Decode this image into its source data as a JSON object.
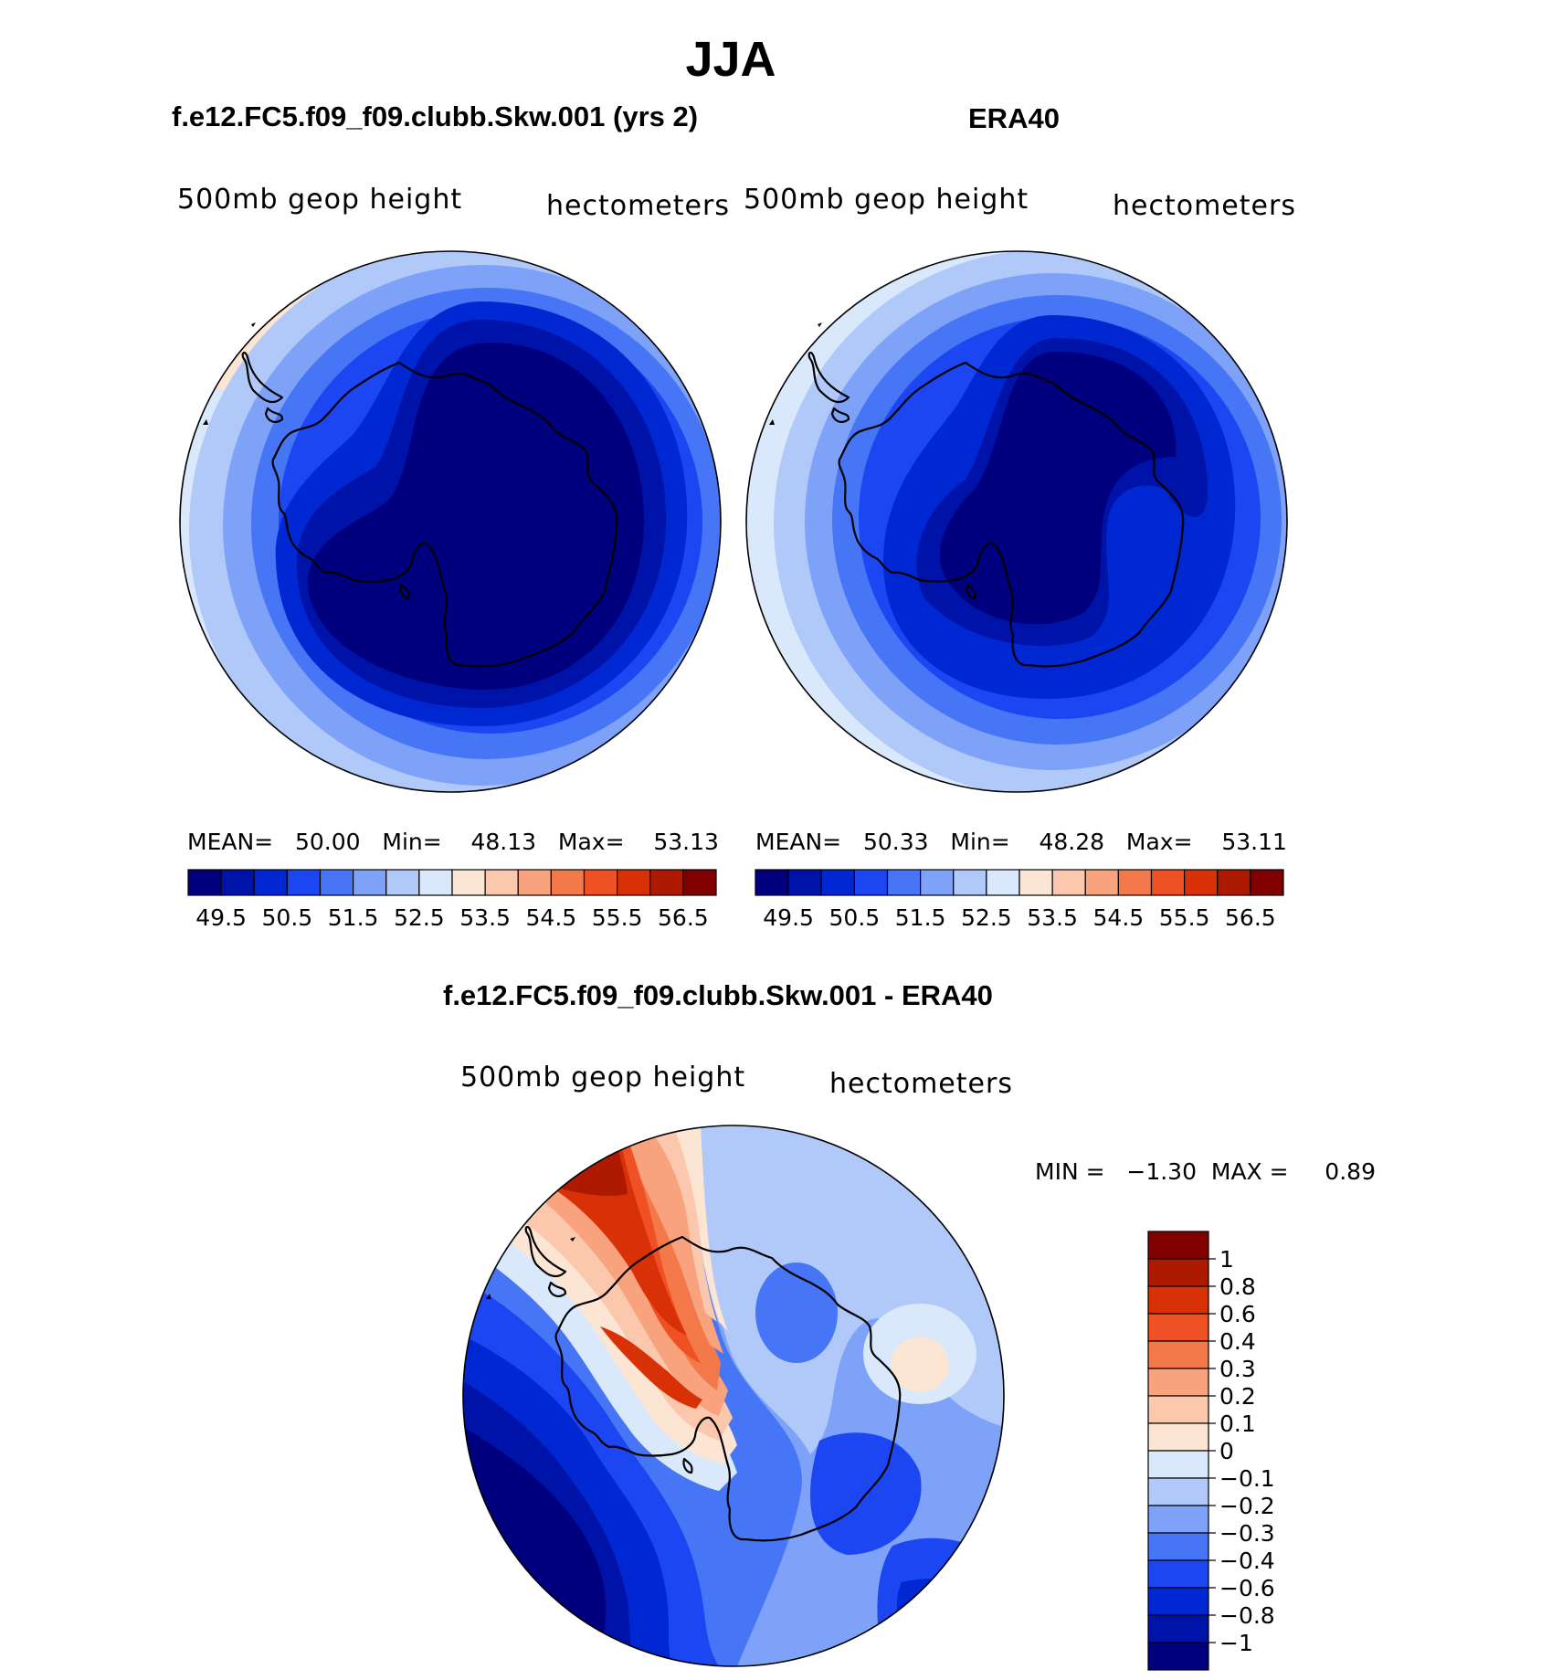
{
  "title": "JJA",
  "panels": [
    {
      "id": "model",
      "heading": "f.e12.FC5.f09_f09.clubb.Skw.001 (yrs 2)",
      "field_label": "500mb  geop  height",
      "units_label": "hectometers",
      "stats": {
        "mean_label": "MEAN=",
        "mean": "50.00",
        "min_label": "Min=",
        "min": "48.13",
        "max_label": "Max=",
        "max": "53.13"
      }
    },
    {
      "id": "obs",
      "heading": "ERA40",
      "field_label": "500mb  geop  height",
      "units_label": "hectometers",
      "stats": {
        "mean_label": "MEAN=",
        "mean": "50.33",
        "min_label": "Min=",
        "min": "48.28",
        "max_label": "Max=",
        "max": "53.11"
      }
    }
  ],
  "difference": {
    "heading": "f.e12.FC5.f09_f09.clubb.Skw.001 - ERA40",
    "field_label": "500mb  geop  height",
    "units_label": "hectometers",
    "minmax_text": "MIN =   −1.30  MAX =     0.89"
  },
  "chart_data": [
    {
      "type": "heatmap",
      "title": "f.e12.FC5.f09_f09.clubb.Skw.001 (yrs 2)",
      "variable": "500mb geop height",
      "units": "hectometers",
      "projection": "south polar stereographic",
      "mean": 50.0,
      "min": 48.13,
      "max": 53.13,
      "contour_levels": [
        49.5,
        50.0,
        50.5,
        51.0,
        51.5,
        52.0,
        52.5,
        53.0,
        53.5,
        54.0,
        54.5,
        55.0,
        55.5,
        56.0,
        56.5
      ],
      "colorbar_labels": [
        "49.5",
        "50.5",
        "51.5",
        "52.5",
        "53.5",
        "54.5",
        "55.5",
        "56.5"
      ]
    },
    {
      "type": "heatmap",
      "title": "ERA40",
      "variable": "500mb geop height",
      "units": "hectometers",
      "projection": "south polar stereographic",
      "mean": 50.33,
      "min": 48.28,
      "max": 53.11,
      "contour_levels": [
        49.5,
        50.0,
        50.5,
        51.0,
        51.5,
        52.0,
        52.5,
        53.0,
        53.5,
        54.0,
        54.5,
        55.0,
        55.5,
        56.0,
        56.5
      ],
      "colorbar_labels": [
        "49.5",
        "50.5",
        "51.5",
        "52.5",
        "53.5",
        "54.5",
        "55.5",
        "56.5"
      ]
    },
    {
      "type": "heatmap",
      "title": "f.e12.FC5.f09_f09.clubb.Skw.001 - ERA40",
      "variable": "500mb geop height",
      "units": "hectometers",
      "projection": "south polar stereographic",
      "min": -1.3,
      "max": 0.89,
      "contour_levels": [
        -1,
        -0.8,
        -0.6,
        -0.4,
        -0.3,
        -0.2,
        -0.1,
        0,
        0.1,
        0.2,
        0.3,
        0.4,
        0.6,
        0.8,
        1
      ],
      "colorbar_labels": [
        "1",
        "0.8",
        "0.6",
        "0.4",
        "0.3",
        "0.2",
        "0.1",
        "0",
        "−0.1",
        "−0.2",
        "−0.3",
        "−0.4",
        "−0.6",
        "−0.8",
        "−1"
      ]
    }
  ],
  "colors": {
    "abs_palette": [
      "#00007f",
      "#0013a8",
      "#0028d2",
      "#1c46f2",
      "#4675f5",
      "#7ea2f8",
      "#b1c9f9",
      "#d9e9fb",
      "#fde5d4",
      "#fbc8ad",
      "#f8a37d",
      "#f4794a",
      "#f05124",
      "#d83108",
      "#ae1a00",
      "#800000"
    ],
    "diff_palette": [
      "#800000",
      "#ae1a00",
      "#d83108",
      "#f05124",
      "#f4794a",
      "#f8a37d",
      "#fbc8ad",
      "#fde5d4",
      "#d9e9fb",
      "#b1c9f9",
      "#7ea2f8",
      "#4675f5",
      "#1c46f2",
      "#0028d2",
      "#0013a8",
      "#00007f"
    ]
  }
}
